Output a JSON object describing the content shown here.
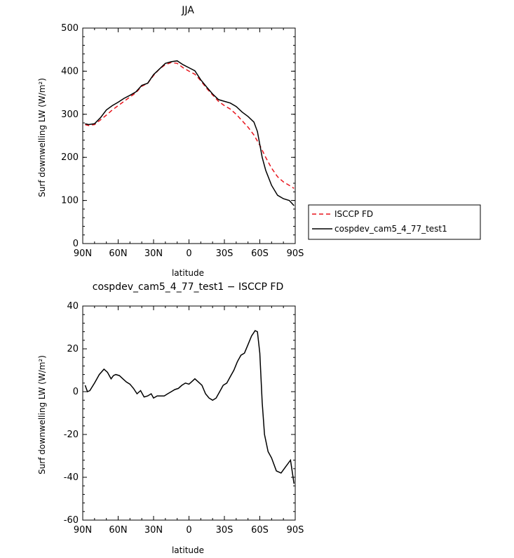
{
  "chart_data": [
    {
      "type": "line",
      "title": "JJA",
      "xlabel": "latitude",
      "ylabel": "Surf downwelling LW (W/m²)",
      "ylim": [
        0,
        500
      ],
      "yticks": [
        0,
        100,
        200,
        300,
        400,
        500
      ],
      "xlim": [
        90,
        -90
      ],
      "xticks": [
        {
          "value": 90,
          "label": "90N"
        },
        {
          "value": 60,
          "label": "60N"
        },
        {
          "value": 30,
          "label": "30N"
        },
        {
          "value": 0,
          "label": "0"
        },
        {
          "value": -30,
          "label": "30S"
        },
        {
          "value": -60,
          "label": "60S"
        },
        {
          "value": -90,
          "label": "90S"
        }
      ],
      "legend_position": "right",
      "series": [
        {
          "name": "ISCCP FD",
          "color": "#e8141c",
          "dash": true,
          "x": [
            88,
            85,
            80,
            75,
            70,
            65,
            60,
            55,
            50,
            45,
            40,
            35,
            30,
            25,
            20,
            15,
            10,
            5,
            0,
            -5,
            -10,
            -15,
            -20,
            -25,
            -30,
            -35,
            -40,
            -45,
            -50,
            -55,
            -60,
            -65,
            -70,
            -75,
            -80,
            -85,
            -89
          ],
          "y": [
            276,
            274,
            276,
            287,
            298,
            310,
            320,
            330,
            340,
            350,
            365,
            372,
            390,
            405,
            415,
            420,
            418,
            408,
            400,
            393,
            378,
            360,
            345,
            330,
            320,
            312,
            300,
            285,
            270,
            252,
            228,
            200,
            175,
            155,
            143,
            135,
            128
          ]
        },
        {
          "name": "cospdev_cam5_4_77_test1",
          "color": "#000000",
          "dash": false,
          "x": [
            88,
            85,
            80,
            75,
            70,
            65,
            60,
            55,
            50,
            45,
            40,
            35,
            30,
            25,
            20,
            15,
            10,
            5,
            0,
            -5,
            -10,
            -15,
            -20,
            -25,
            -30,
            -35,
            -40,
            -45,
            -50,
            -55,
            -58,
            -62,
            -65,
            -70,
            -75,
            -80,
            -85,
            -89
          ],
          "y": [
            278,
            276,
            278,
            292,
            310,
            320,
            328,
            337,
            344,
            352,
            367,
            372,
            392,
            405,
            418,
            422,
            424,
            415,
            408,
            401,
            380,
            363,
            347,
            334,
            330,
            326,
            318,
            305,
            295,
            282,
            260,
            200,
            170,
            135,
            112,
            104,
            100,
            88
          ]
        }
      ]
    },
    {
      "type": "line",
      "title": "cospdev_cam5_4_77_test1 − ISCCP FD",
      "xlabel": "latitude",
      "ylabel": "Surf downwelling LW (W/m²)",
      "ylim": [
        -60,
        40
      ],
      "yticks": [
        -60,
        -40,
        -20,
        0,
        20,
        40
      ],
      "xlim": [
        90,
        -90
      ],
      "xticks": [
        {
          "value": 90,
          "label": "90N"
        },
        {
          "value": 60,
          "label": "60N"
        },
        {
          "value": 30,
          "label": "30N"
        },
        {
          "value": 0,
          "label": "0"
        },
        {
          "value": -30,
          "label": "30S"
        },
        {
          "value": -60,
          "label": "60S"
        },
        {
          "value": -90,
          "label": "90S"
        }
      ],
      "series": [
        {
          "name": "",
          "color": "#000000",
          "dash": false,
          "x": [
            88,
            86,
            84,
            80,
            76,
            72,
            69,
            66,
            64,
            62,
            59,
            56,
            53,
            50,
            47,
            44,
            41,
            38,
            35,
            32,
            30,
            27,
            24,
            21,
            18,
            15,
            12,
            9,
            6,
            3,
            0,
            -2,
            -5,
            -8,
            -11,
            -14,
            -17,
            -20,
            -23,
            -26,
            -29,
            -32,
            -35,
            -38,
            -41,
            -44,
            -47,
            -50,
            -53,
            -56,
            -58,
            -60,
            -62,
            -64,
            -67,
            -70,
            -74,
            -78,
            -82,
            -86,
            -89
          ],
          "y": [
            3,
            0,
            0.5,
            4,
            8,
            10.5,
            9,
            6,
            7.5,
            8,
            7.5,
            6,
            4.5,
            3.5,
            1.5,
            -1,
            0.5,
            -2.5,
            -2,
            -1,
            -3,
            -2,
            -2,
            -2,
            -1,
            0,
            1,
            1.5,
            3,
            4,
            3.5,
            4.5,
            6,
            4.5,
            3,
            -1,
            -3,
            -4,
            -3,
            0,
            3,
            4,
            7,
            10,
            14,
            17,
            18,
            22,
            26,
            28.5,
            28,
            18,
            -5,
            -20,
            -28,
            -31,
            -37,
            -38,
            -35,
            -32,
            -43
          ]
        }
      ]
    }
  ]
}
